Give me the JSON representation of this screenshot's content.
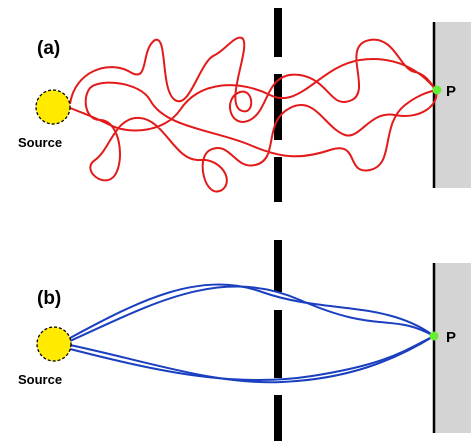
{
  "panels": [
    {
      "label": "(a)",
      "source": "Source",
      "point": "P"
    },
    {
      "label": "(b)",
      "source": "Source",
      "point": "P"
    }
  ]
}
